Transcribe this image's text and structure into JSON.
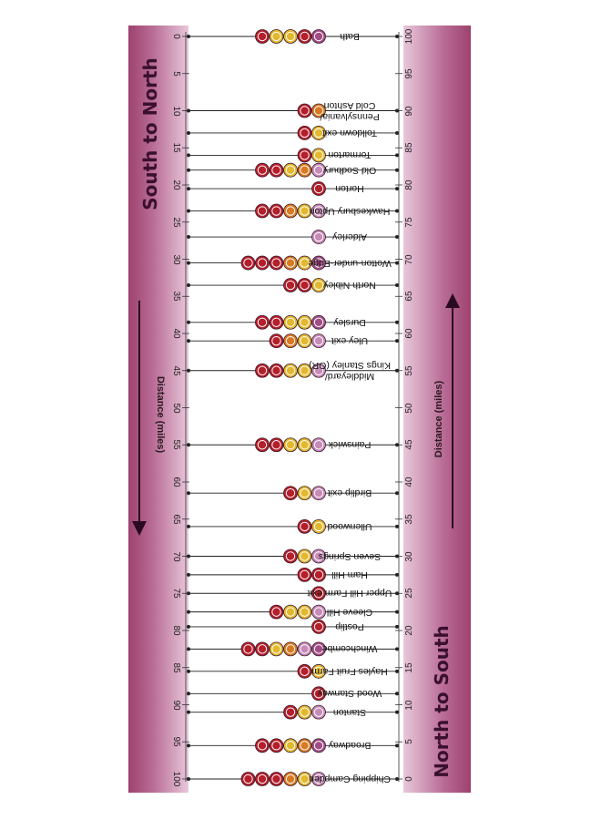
{
  "header": {
    "left_title": "South to North",
    "right_title": "North to South",
    "left_axis_label": "Distance (miles)",
    "right_axis_label": "Distance (miles)"
  },
  "colors": {
    "band": "#9d426f",
    "badge_purple": "#a24e86",
    "badge_red": "#b31f2b",
    "badge_yellow": "#e2b830",
    "badge_orange": "#d77a23",
    "badge_pink": "#c78bb8"
  },
  "axis": {
    "min": 0,
    "max": 100,
    "step": 5,
    "left_ticks": [
      "0",
      "5",
      "10",
      "15",
      "20",
      "25",
      "30",
      "35",
      "40",
      "45",
      "50",
      "55",
      "60",
      "65",
      "70",
      "75",
      "80",
      "85",
      "90",
      "95",
      "100"
    ],
    "right_ticks": [
      "100",
      "95",
      "90",
      "85",
      "80",
      "75",
      "70",
      "65",
      "60",
      "55",
      "50",
      "45",
      "40",
      "35",
      "30",
      "25",
      "20",
      "15",
      "10",
      "5",
      "0"
    ]
  },
  "stops": [
    {
      "name": "Bath",
      "lines": [
        "Bath"
      ],
      "mile": 0,
      "badges": [
        "purple",
        "red",
        "yellow",
        "yellow",
        "red"
      ]
    },
    {
      "name": "Cold Ashton",
      "lines": [
        "Pennsylvania/",
        "Cold Ashton"
      ],
      "mile": 10,
      "badges": [
        "orange",
        "red"
      ]
    },
    {
      "name": "Tolldown exit",
      "lines": [
        "Tolldown exit"
      ],
      "mile": 13,
      "badges": [
        "yellow",
        "red"
      ]
    },
    {
      "name": "Tormarton",
      "lines": [
        "Tormarton"
      ],
      "mile": 16,
      "badges": [
        "yellow",
        "red"
      ]
    },
    {
      "name": "Old Sodbury",
      "lines": [
        "Old Sodbury"
      ],
      "mile": 18,
      "badges": [
        "pink",
        "orange",
        "yellow",
        "red",
        "red"
      ]
    },
    {
      "name": "Horton",
      "lines": [
        "Horton"
      ],
      "mile": 20.5,
      "badges": [
        "red"
      ]
    },
    {
      "name": "Hawkesbury Upton",
      "lines": [
        "Hawkesbury Upton"
      ],
      "mile": 23.5,
      "badges": [
        "pink",
        "yellow",
        "orange",
        "red",
        "red"
      ]
    },
    {
      "name": "Alderley",
      "lines": [
        "Alderley"
      ],
      "mile": 27,
      "badges": [
        "pink"
      ]
    },
    {
      "name": "Wotton-under-Edge",
      "lines": [
        "Wotton-under-Edge"
      ],
      "mile": 30.5,
      "badges": [
        "purple",
        "yellow",
        "orange",
        "red",
        "red",
        "red"
      ]
    },
    {
      "name": "North Nibley",
      "lines": [
        "North Nibley"
      ],
      "mile": 33.5,
      "badges": [
        "yellow",
        "red",
        "red"
      ]
    },
    {
      "name": "Dursley",
      "lines": [
        "Dursley"
      ],
      "mile": 38.5,
      "badges": [
        "purple",
        "yellow",
        "yellow",
        "red",
        "red"
      ]
    },
    {
      "name": "Uley exit",
      "lines": [
        "Uley exit"
      ],
      "mile": 41,
      "badges": [
        "pink",
        "yellow",
        "orange",
        "red"
      ]
    },
    {
      "name": "Kings Stanley",
      "lines": [
        "Middleyard/",
        "Kings Stanley (OR)"
      ],
      "mile": 45,
      "badges": [
        "pink",
        "yellow",
        "yellow",
        "red",
        "red"
      ]
    },
    {
      "name": "Painswick",
      "lines": [
        "Painswick"
      ],
      "mile": 55,
      "badges": [
        "pink",
        "yellow",
        "yellow",
        "red",
        "red"
      ]
    },
    {
      "name": "Birdlip exit",
      "lines": [
        "Birdlip exit"
      ],
      "mile": 61.5,
      "badges": [
        "pink",
        "yellow",
        "red"
      ]
    },
    {
      "name": "Ullenwood",
      "lines": [
        "Ullenwood"
      ],
      "mile": 66,
      "badges": [
        "yellow",
        "red"
      ]
    },
    {
      "name": "Seven Springs",
      "lines": [
        "Seven Springs"
      ],
      "mile": 70,
      "badges": [
        "pink",
        "yellow",
        "red"
      ]
    },
    {
      "name": "Ham Hill",
      "lines": [
        "Ham Hill"
      ],
      "mile": 72.5,
      "badges": [
        "red",
        "red"
      ]
    },
    {
      "name": "Upper Hill Farm exit",
      "lines": [
        "Upper Hill Farm exit"
      ],
      "mile": 75,
      "badges": [
        "red"
      ]
    },
    {
      "name": "Cleeve Hill",
      "lines": [
        "Cleeve Hill"
      ],
      "mile": 77.5,
      "badges": [
        "pink",
        "yellow",
        "yellow",
        "red"
      ]
    },
    {
      "name": "Postlip",
      "lines": [
        "Postlip"
      ],
      "mile": 79.5,
      "badges": [
        "red"
      ]
    },
    {
      "name": "Winchcombe",
      "lines": [
        "Winchcombe"
      ],
      "mile": 82.5,
      "badges": [
        "purple",
        "pink",
        "orange",
        "yellow",
        "red",
        "red"
      ]
    },
    {
      "name": "Hayles Fruit Farm",
      "lines": [
        "Hayles Fruit Farm"
      ],
      "mile": 85.5,
      "badges": [
        "yellow",
        "red"
      ]
    },
    {
      "name": "Wood Stanway",
      "lines": [
        "Wood Stanway"
      ],
      "mile": 88.5,
      "badges": [
        "red"
      ]
    },
    {
      "name": "Stanton",
      "lines": [
        "Stanton"
      ],
      "mile": 91,
      "badges": [
        "pink",
        "yellow",
        "red"
      ]
    },
    {
      "name": "Broadway",
      "lines": [
        "Broadway"
      ],
      "mile": 95.5,
      "badges": [
        "purple",
        "orange",
        "yellow",
        "red",
        "red"
      ]
    },
    {
      "name": "Chipping Campden",
      "lines": [
        "Chipping Campden"
      ],
      "mile": 100,
      "badges": [
        "pink",
        "yellow",
        "orange",
        "red",
        "red",
        "red"
      ]
    }
  ]
}
